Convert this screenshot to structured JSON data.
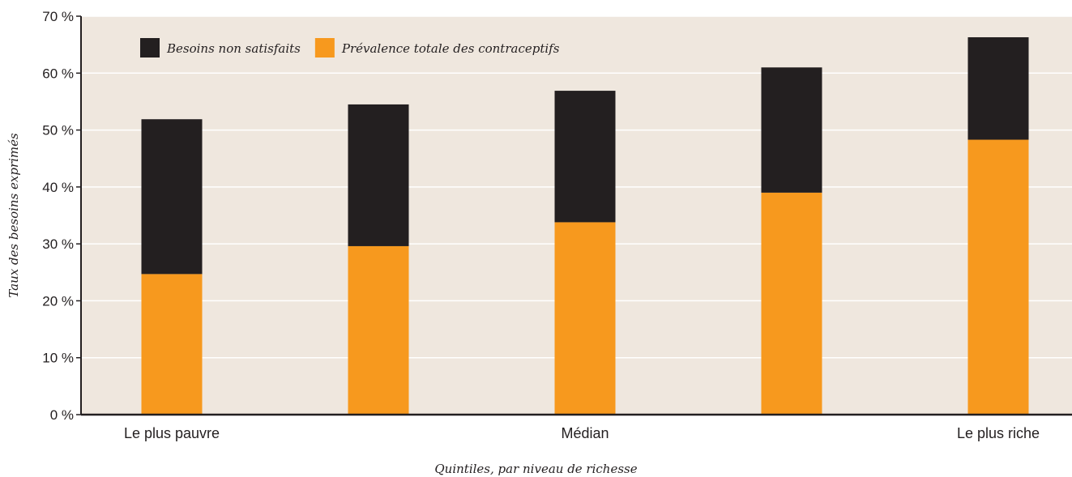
{
  "chart_data": {
    "type": "bar",
    "stacked": true,
    "categories": [
      "Le plus pauvre",
      "",
      "Médian",
      "",
      "Le plus riche"
    ],
    "series": [
      {
        "name": "Prévalence totale des contraceptifs",
        "values": [
          24.7,
          29.6,
          33.8,
          39.0,
          48.3
        ],
        "color": "#f7991e"
      },
      {
        "name": "Besoins non satisfaits",
        "values": [
          27.2,
          24.9,
          23.1,
          22.0,
          18.0
        ],
        "color": "#231f20"
      }
    ],
    "title": "",
    "xlabel": "Quintiles, par niveau de richesse",
    "ylabel": "Taux des besoins exprimés",
    "ylim": [
      0,
      70
    ],
    "yticks": [
      0,
      10,
      20,
      30,
      40,
      50,
      60,
      70
    ],
    "ytick_labels": [
      "0 %",
      "10 %",
      "20 %",
      "30 %",
      "40 %",
      "50 %",
      "60 %",
      "70 %"
    ],
    "grid": true,
    "legend": {
      "position": "top-left",
      "order": [
        "Besoins non satisfaits",
        "Prévalence totale des contraceptifs"
      ]
    },
    "colors": {
      "plot_background": "#efe7de",
      "gridline": "#ffffff",
      "axis": "#231f20"
    }
  }
}
